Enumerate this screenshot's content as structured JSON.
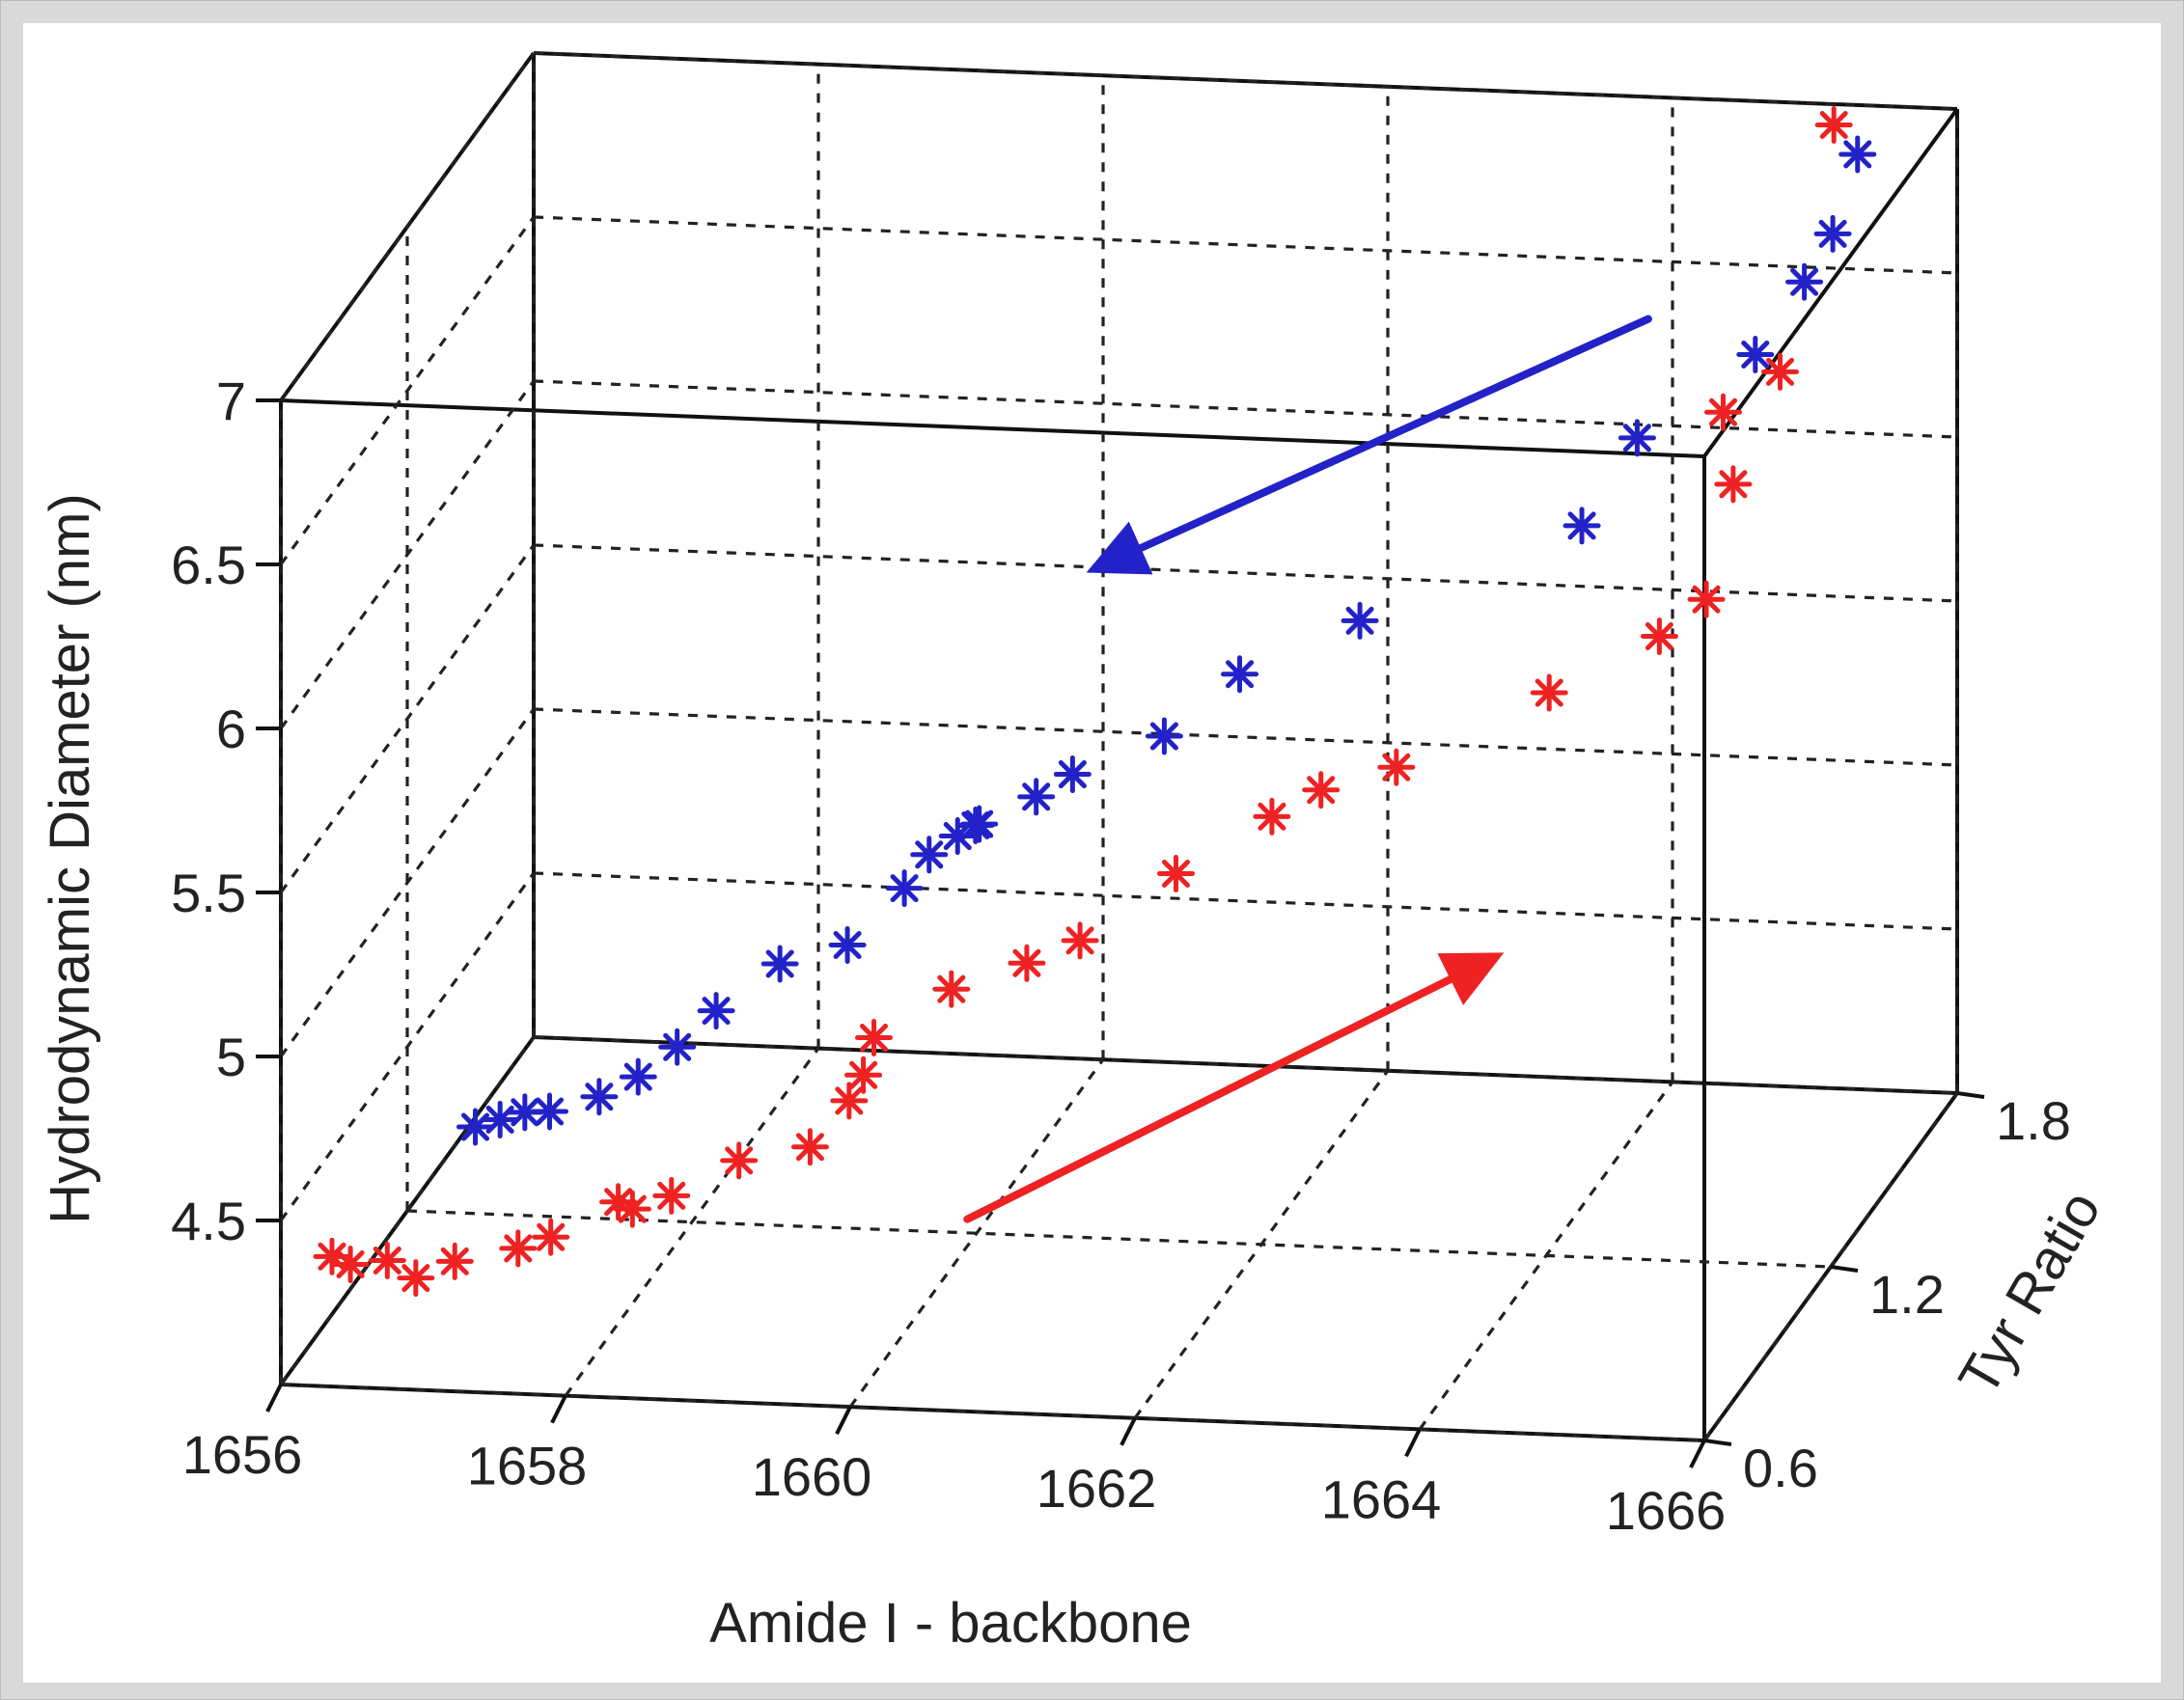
{
  "chart_data": {
    "type": "scatter",
    "projection": "3d",
    "title": "",
    "xlabel": "Amide I - backbone",
    "ylabel": "Tyr Ratio",
    "zlabel": "Hydrodynamic Diameter (nm)",
    "xlim": [
      1656,
      1666
    ],
    "ylim": [
      0.6,
      1.8
    ],
    "zlim": [
      4.0,
      7.0
    ],
    "x_ticks": [
      "1656",
      "1658",
      "1660",
      "1662",
      "1664",
      "1666"
    ],
    "y_ticks": [
      "0.6",
      "1.2",
      "1.8"
    ],
    "z_ticks": [
      "4.5",
      "5",
      "5.5",
      "6",
      "6.5",
      "7"
    ],
    "grid": true,
    "marker": "asterisk",
    "colors": {
      "series_a": "#2222c8",
      "series_b": "#ee2222",
      "background": "#ffffff",
      "outer_background": "#d9d9d9"
    },
    "series": [
      {
        "color": "#2222c8",
        "trend_arrow": "toward lower Amide I / higher Tyr Ratio",
        "points": [
          [
            1663.9,
            1.7,
            6.05
          ],
          [
            1664.7,
            1.72,
            6.3
          ],
          [
            1665.0,
            1.75,
            6.5
          ],
          [
            1665.2,
            1.75,
            6.65
          ],
          [
            1665.3,
            1.8,
            6.85
          ],
          [
            1663.6,
            1.64,
            5.83
          ],
          [
            1662.1,
            1.6,
            5.55
          ],
          [
            1661.3,
            1.57,
            5.4
          ],
          [
            1660.8,
            1.55,
            5.22
          ],
          [
            1660.2,
            1.52,
            5.12
          ],
          [
            1659.9,
            1.55,
            5.02
          ],
          [
            1659.5,
            1.55,
            4.93
          ],
          [
            1659.4,
            1.6,
            4.88
          ],
          [
            1659.2,
            1.65,
            4.8
          ],
          [
            1659.0,
            1.65,
            4.74
          ],
          [
            1658.9,
            1.6,
            4.68
          ],
          [
            1658.5,
            1.6,
            4.5
          ],
          [
            1658.1,
            1.55,
            4.48
          ],
          [
            1657.8,
            1.45,
            4.42
          ],
          [
            1657.6,
            1.4,
            4.35
          ],
          [
            1657.4,
            1.35,
            4.3
          ],
          [
            1657.2,
            1.3,
            4.28
          ],
          [
            1657.0,
            1.2,
            4.32
          ],
          [
            1656.9,
            1.15,
            4.36
          ],
          [
            1656.8,
            1.1,
            4.38
          ],
          [
            1656.7,
            1.05,
            4.4
          ]
        ]
      },
      {
        "color": "#ee2222",
        "trend_arrow": "toward higher Amide I / lower Tyr Ratio",
        "points": [
          [
            1665.4,
            1.62,
            7.1
          ],
          [
            1665.2,
            1.5,
            6.45
          ],
          [
            1664.8,
            1.5,
            6.32
          ],
          [
            1664.9,
            1.48,
            6.12
          ],
          [
            1664.8,
            1.42,
            5.82
          ],
          [
            1664.5,
            1.4,
            5.72
          ],
          [
            1663.8,
            1.35,
            5.58
          ],
          [
            1662.8,
            1.3,
            5.38
          ],
          [
            1662.3,
            1.28,
            5.32
          ],
          [
            1662.0,
            1.25,
            5.26
          ],
          [
            1661.4,
            1.2,
            5.12
          ],
          [
            1660.8,
            1.15,
            4.95
          ],
          [
            1660.5,
            1.1,
            4.92
          ],
          [
            1660.0,
            1.08,
            4.85
          ],
          [
            1659.5,
            1.05,
            4.72
          ],
          [
            1659.5,
            1.0,
            4.65
          ],
          [
            1659.4,
            1.0,
            4.57
          ],
          [
            1659.2,
            0.95,
            4.47
          ],
          [
            1658.7,
            0.95,
            4.42
          ],
          [
            1658.3,
            0.9,
            4.35
          ],
          [
            1658.1,
            0.85,
            4.35
          ],
          [
            1658.0,
            0.85,
            4.37
          ],
          [
            1657.6,
            0.8,
            4.3
          ],
          [
            1657.4,
            0.78,
            4.28
          ],
          [
            1657.0,
            0.75,
            4.26
          ],
          [
            1656.8,
            0.7,
            4.25
          ],
          [
            1656.6,
            0.7,
            4.3
          ],
          [
            1656.4,
            0.66,
            4.32
          ],
          [
            1656.3,
            0.64,
            4.36
          ]
        ]
      }
    ]
  }
}
